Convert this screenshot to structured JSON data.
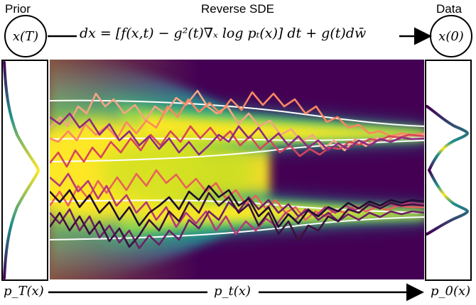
{
  "labels": {
    "prior": "Prior",
    "reverse_sde": "Reverse SDE",
    "data": "Data",
    "prior_state": "x(T)",
    "data_state": "x(0)",
    "equation": "dx = [f(x,t) − g²(t)∇ₓ log pₜ(x)] dt + g(t)dw̄",
    "prior_density": "p_T(x)",
    "marginal_density": "p_t(x)",
    "data_density": "p_0(x)"
  },
  "colors": {
    "density_map": [
      "#440154",
      "#3b528b",
      "#21918c",
      "#5ec962",
      "#fde725"
    ],
    "trajectories": [
      "#f4a582",
      "#fb8761",
      "#e8615b",
      "#d6455a",
      "#b73779",
      "#8c2981",
      "#6e1e66",
      "#3d0f3f",
      "#1f0c30"
    ]
  }
}
